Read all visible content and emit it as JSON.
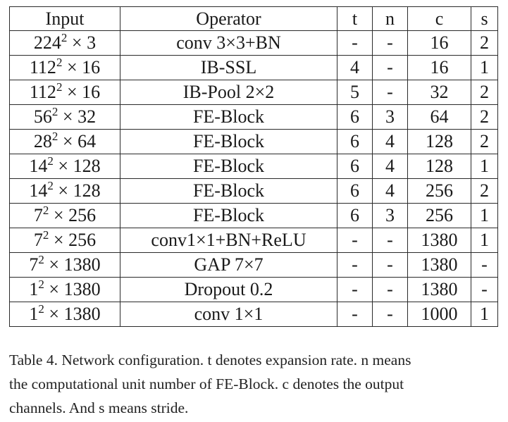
{
  "table": {
    "headers": [
      "Input",
      "Operator",
      "t",
      "n",
      "c",
      "s"
    ],
    "rows": [
      {
        "input_base": "224",
        "input_exp": "2",
        "input_rest": " × 3",
        "operator": "conv 3×3+BN",
        "t": "-",
        "n": "-",
        "c": "16",
        "s": "2"
      },
      {
        "input_base": "112",
        "input_exp": "2",
        "input_rest": " × 16",
        "operator": "IB-SSL",
        "t": "4",
        "n": "-",
        "c": "16",
        "s": "1"
      },
      {
        "input_base": "112",
        "input_exp": "2",
        "input_rest": " × 16",
        "operator": "IB-Pool 2×2",
        "t": "5",
        "n": "-",
        "c": "32",
        "s": "2"
      },
      {
        "input_base": "56",
        "input_exp": "2",
        "input_rest": " × 32",
        "operator": "FE-Block",
        "t": "6",
        "n": "3",
        "c": "64",
        "s": "2"
      },
      {
        "input_base": "28",
        "input_exp": "2",
        "input_rest": " × 64",
        "operator": "FE-Block",
        "t": "6",
        "n": "4",
        "c": "128",
        "s": "2"
      },
      {
        "input_base": "14",
        "input_exp": "2",
        "input_rest": " × 128",
        "operator": "FE-Block",
        "t": "6",
        "n": "4",
        "c": "128",
        "s": "1"
      },
      {
        "input_base": "14",
        "input_exp": "2",
        "input_rest": " × 128",
        "operator": "FE-Block",
        "t": "6",
        "n": "4",
        "c": "256",
        "s": "2"
      },
      {
        "input_base": "7",
        "input_exp": "2",
        "input_rest": " × 256",
        "operator": "FE-Block",
        "t": "6",
        "n": "3",
        "c": "256",
        "s": "1"
      },
      {
        "input_base": "7",
        "input_exp": "2",
        "input_rest": " × 256",
        "operator": "conv1×1+BN+ReLU",
        "t": "-",
        "n": "-",
        "c": "1380",
        "s": "1"
      },
      {
        "input_base": "7",
        "input_exp": "2",
        "input_rest": " × 1380",
        "operator": "GAP 7×7",
        "t": "-",
        "n": "-",
        "c": "1380",
        "s": "-"
      },
      {
        "input_base": "1",
        "input_exp": "2",
        "input_rest": " × 1380",
        "operator": "Dropout 0.2",
        "t": "-",
        "n": "-",
        "c": "1380",
        "s": "-"
      },
      {
        "input_base": "1",
        "input_exp": "2",
        "input_rest": " × 1380",
        "operator": "conv 1×1",
        "t": "-",
        "n": "-",
        "c": "1000",
        "s": "1"
      }
    ]
  },
  "caption": {
    "lines": [
      "Table 4. Network configuration. t denotes expansion rate. n means",
      "the computational unit number of FE-Block. c denotes the output",
      "channels. And s means stride."
    ]
  }
}
